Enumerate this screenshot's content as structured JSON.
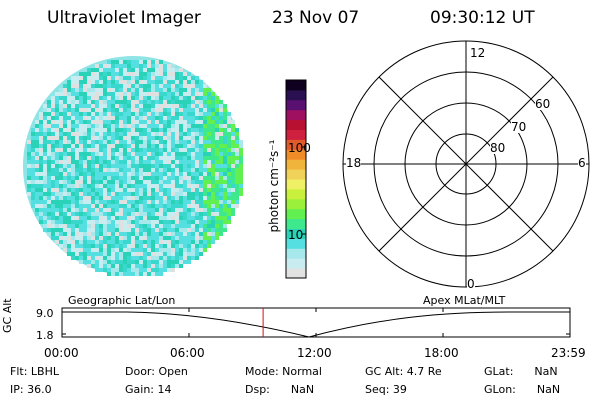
{
  "header": {
    "instrument": "Ultraviolet Imager",
    "date": "23 Nov 07",
    "time": "09:30:12 UT"
  },
  "colorbar": {
    "unit_label": "photon cm⁻²s⁻¹",
    "tick_100": "100",
    "tick_10": "10",
    "colors": [
      "#e2e2e2",
      "#c8ecf0",
      "#a6e8ec",
      "#55dfe0",
      "#2ad2b8",
      "#3ee88c",
      "#61f050",
      "#9af03a",
      "#c8f03c",
      "#f0f066",
      "#f0d25a",
      "#f0b43c",
      "#f08c28",
      "#e05a2a",
      "#d02040",
      "#b81030",
      "#a01060",
      "#5a1070",
      "#2a1050",
      "#100020"
    ]
  },
  "polar": {
    "mlt_labels": {
      "top": "12",
      "right": "6",
      "left": "18",
      "bottom": "0"
    },
    "lat_labels": [
      "60",
      "70",
      "80"
    ]
  },
  "altitude_plot": {
    "left_title": "Geographic Lat/Lon",
    "right_title": "Apex MLat/MLT",
    "ylabel": "GC Alt",
    "ytick_top": "9.0",
    "ytick_bottom": "1.8",
    "xticks": [
      "00:00",
      "06:00",
      "12:00",
      "18:00",
      "23:59"
    ],
    "current_marker_hours": 9.503
  },
  "status": {
    "flt": "Flt: LBHL",
    "ip": "IP: 36.0",
    "door": "Door: Open",
    "gain": "Gain: 14",
    "mode": "Mode: Normal",
    "dsp": "Dsp:      NaN",
    "gcalt": "GC Alt: 4.7 Re",
    "seq": "Seq: 39",
    "glat": "GLat:      NaN",
    "glon": "GLon:      NaN"
  },
  "earth_image": {
    "palette": [
      "#e0e0e0",
      "#c8ecf0",
      "#a6e8ec",
      "#55dfe0",
      "#3ad8cc",
      "#2ad2b8",
      "#3ee88c",
      "#61f050"
    ]
  }
}
